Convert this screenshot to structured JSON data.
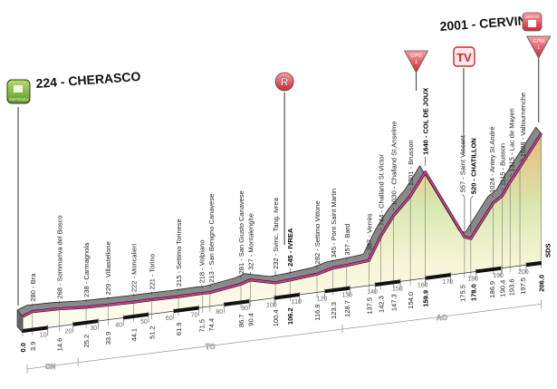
{
  "chart_data": {
    "type": "area",
    "xlabel": "",
    "ylabel": "",
    "x_unit": "km",
    "y_unit": "m",
    "xlim": [
      0,
      206.0
    ],
    "start": {
      "label": "224 - CHERASCO",
      "icon": "partenza-flag-icon",
      "icon_text": "PARTENZA"
    },
    "finish": {
      "label": "2001 - CERVINIA",
      "icon": "arrivo-icon",
      "icon_text": "ARRIVO"
    },
    "points": [
      {
        "km": "0.0",
        "alt": 224,
        "place": "CHERASCO",
        "label": ""
      },
      {
        "km": "3.9",
        "alt": 280,
        "place": "Bra",
        "label": "280 - Bra"
      },
      {
        "km": "14.6",
        "alt": 268,
        "place": "Sommariva del Bosco",
        "label": "268 - Sommariva del Bosco"
      },
      {
        "km": "25.2",
        "alt": 238,
        "place": "Carmagnola",
        "label": "238 - Carmagnola"
      },
      {
        "km": "33.9",
        "alt": 229,
        "place": "Villastellone",
        "label": "229 - Villastellone"
      },
      {
        "km": "44.1",
        "alt": 222,
        "place": "Moncalieri",
        "label": "222 - Moncalieri"
      },
      {
        "km": "51.2",
        "alt": 221,
        "place": "Torino",
        "label": "221 - Torino"
      },
      {
        "km": "61.9",
        "alt": 215,
        "place": "Settimo Torinese",
        "label": "215 - Settimo Torinese"
      },
      {
        "km": "71.5",
        "alt": 218,
        "place": "Volpiano",
        "label": "218 - Volpiano"
      },
      {
        "km": "74.4",
        "alt": 213,
        "place": "San Benigno Canavese",
        "label": "213 - San Benigno Canavese"
      },
      {
        "km": "86.7",
        "alt": 281,
        "place": "San Giusto Canavese",
        "label": "281 - San Giusto Canavese"
      },
      {
        "km": "90.4",
        "alt": 327,
        "place": "Montalenghe",
        "label": "327 - Montalenghe"
      },
      {
        "km": "100.4",
        "alt": 232,
        "place": "Svinc. Tang. Ivrea",
        "label": "232 - Svinc. Tang. Ivrea"
      },
      {
        "km": "106.2",
        "alt": 245,
        "place": "IVREA",
        "label": "245 - IVREA",
        "bold": true
      },
      {
        "km": "116.9",
        "alt": 282,
        "place": "Settimo Vittone",
        "label": "282 - Settimo Vittone"
      },
      {
        "km": "123.3",
        "alt": 345,
        "place": "Pont Saint Martin",
        "label": "345 - Pont Saint Martin"
      },
      {
        "km": "128.7",
        "alt": 357,
        "place": "Bard",
        "label": "357 - Bard"
      },
      {
        "km": "137.5",
        "alt": 387,
        "place": "Verrès",
        "label": "387 - Verrès"
      },
      {
        "km": "142.3",
        "alt": 744,
        "place": "Challand St.Victor",
        "label": "744 - Challand St.Victor"
      },
      {
        "km": "147.3",
        "alt": 1030,
        "place": "Challand St.Anselme",
        "label": "1030 - Challand St.Anselme"
      },
      {
        "km": "154.0",
        "alt": 1301,
        "place": "Brusson",
        "label": "1301 - Brusson"
      },
      {
        "km": "159.9",
        "alt": 1640,
        "place": "COL DE JOUX",
        "label": "1640 - COL DE JOUX",
        "bold": true
      },
      {
        "km": "175.5",
        "alt": 557,
        "place": "Saint Vincent",
        "label": "557 - Saint Vincent"
      },
      {
        "km": "178.0",
        "alt": 520,
        "place": "CHATILLON",
        "label": "520 - CHATILLON",
        "bold": true
      },
      {
        "km": "186.9",
        "alt": 1024,
        "place": "Antey St.André",
        "label": "1024 - Antey St.André"
      },
      {
        "km": "190.4",
        "alt": 1115,
        "place": "Busson",
        "label": "1115 - Busson"
      },
      {
        "km": "193.6",
        "alt": 1315,
        "place": "Lac de Mayen",
        "label": "1315 - Lac de Mayen"
      },
      {
        "km": "197.5",
        "alt": 1528,
        "place": "Valtournenche",
        "label": "1528 - Valtournenche"
      },
      {
        "km": "206.0",
        "alt": 2001,
        "place": "CERVINIA",
        "label": ""
      }
    ],
    "km_ticks": [
      "10",
      "20",
      "30",
      "40",
      "50",
      "60",
      "70",
      "80",
      "90",
      "100",
      "110",
      "120",
      "130",
      "140",
      "150",
      "160",
      "170",
      "180",
      "190",
      "200"
    ],
    "bold_km": [
      "0.0",
      "106.2",
      "159.9",
      "178.0",
      "206.0"
    ],
    "regions": [
      {
        "label": "CN",
        "from": 0,
        "to": 22
      },
      {
        "label": "TO",
        "from": 22,
        "to": 127
      },
      {
        "label": "AO",
        "from": 127,
        "to": 206
      }
    ],
    "markers": [
      {
        "type": "feed-zone",
        "icon": "rifornimento-icon",
        "text": "R",
        "km": 104
      },
      {
        "type": "climb",
        "icon": "gpm-icon",
        "text": "GPM",
        "category": "1",
        "km": 159.9
      },
      {
        "type": "tv",
        "icon": "tv-icon",
        "text": "TV",
        "km": 175.5
      },
      {
        "type": "climb",
        "icon": "gpm-icon",
        "text": "GPM",
        "category": "1",
        "km": 206.0
      }
    ],
    "end_note": "SDS",
    "colors": {
      "profile_line": "#e0379e",
      "profile_band": "#8a8a8a",
      "fill_top": "#e9b673",
      "fill_mid": "#d9e8b2",
      "fill_bottom": "#fdfbea",
      "marker_red": "#d9232e",
      "start_green": "#7ab733"
    }
  }
}
